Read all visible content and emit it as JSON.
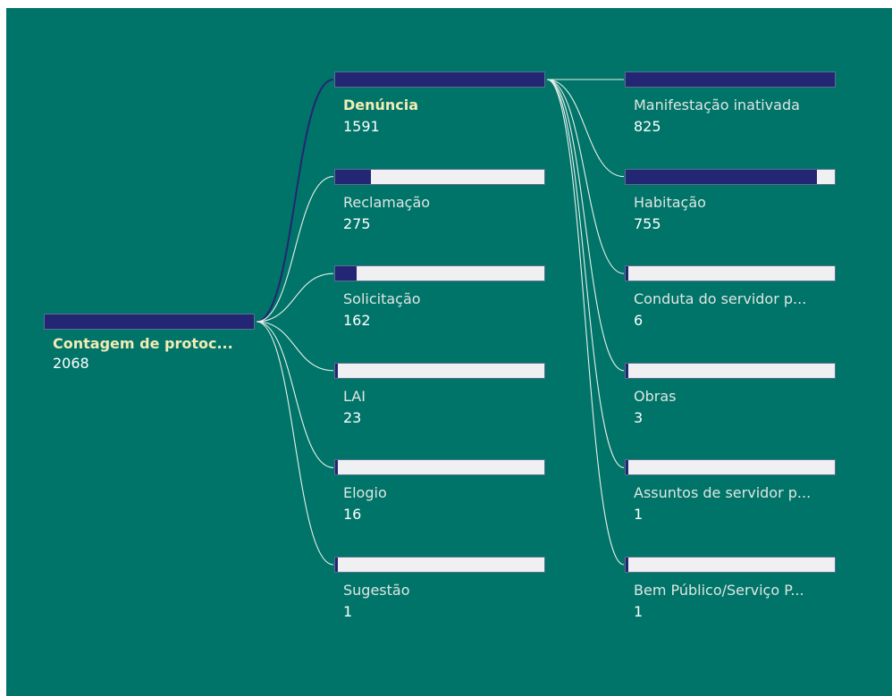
{
  "colors": {
    "background": "#007468",
    "bar_fill": "#232672",
    "bar_track": "#f0f0f3",
    "link_active": "#232672",
    "link": "#e8f0ee",
    "highlight_label": "#f2ecb5"
  },
  "chart_data": {
    "type": "decomposition-tree",
    "levels": [
      {
        "nodes": [
          {
            "label": "Contagem de protoc...",
            "value": 2068,
            "selected": true
          }
        ]
      },
      {
        "nodes": [
          {
            "label": "Denúncia",
            "value": 1591,
            "selected": true
          },
          {
            "label": "Reclamação",
            "value": 275
          },
          {
            "label": "Solicitação",
            "value": 162
          },
          {
            "label": "LAI",
            "value": 23
          },
          {
            "label": "Elogio",
            "value": 16
          },
          {
            "label": "Sugestão",
            "value": 1
          }
        ]
      },
      {
        "nodes": [
          {
            "label": "Manifestação inativada",
            "value": 825
          },
          {
            "label": "Habitação",
            "value": 755
          },
          {
            "label": "Conduta do servidor p...",
            "value": 6
          },
          {
            "label": "Obras",
            "value": 3
          },
          {
            "label": "Assuntos de servidor p...",
            "value": 1
          },
          {
            "label": "Bem Público/Serviço P...",
            "value": 1
          }
        ]
      }
    ]
  }
}
